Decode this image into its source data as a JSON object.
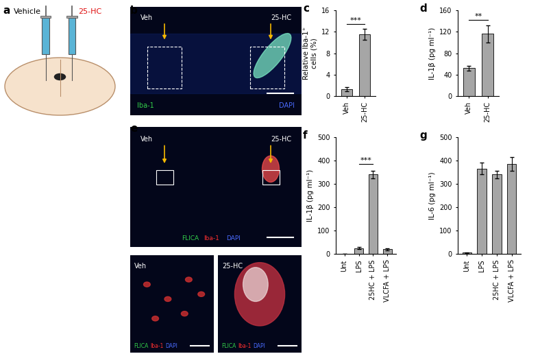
{
  "figure": [
    {
      "label": "a",
      "left": "Vehicle",
      "right": "25-HC",
      "right_color": "#e01010"
    },
    {
      "label": "b",
      "left": "Veh",
      "right": "25-HC",
      "stains": [
        {
          "text": "Iba-1",
          "color": "#33d14a"
        },
        {
          "text": "DAPI",
          "color": "#4a6bff"
        }
      ]
    },
    {
      "label": "e",
      "left": "Veh",
      "right": "25-HC",
      "stains": [
        {
          "text": "FLICA",
          "color": "#33d14a"
        },
        {
          "text": "Iba-1",
          "color": "#ff3030"
        },
        {
          "text": "DAPI",
          "color": "#4a6bff"
        }
      ],
      "insets": [
        "Veh",
        "25-HC"
      ]
    }
  ],
  "chart_data": [
    {
      "panel": "c",
      "type": "bar",
      "categories": [
        "Veh",
        "25-HC"
      ],
      "values": [
        1.3,
        11.5
      ],
      "errors": [
        0.4,
        1.0
      ],
      "color": "#a6a6a6",
      "y_label": "Relative Iba-1⁺\ncells (%)",
      "ylim": [
        0,
        16
      ],
      "yticks": [
        0,
        4,
        8,
        12,
        16
      ],
      "significance": [
        {
          "between": [
            "Veh",
            "25-HC"
          ],
          "label": "***"
        }
      ]
    },
    {
      "panel": "d",
      "type": "bar",
      "categories": [
        "Veh",
        "25-HC"
      ],
      "values": [
        52,
        116
      ],
      "errors": [
        4,
        16
      ],
      "color": "#a6a6a6",
      "y_label": "IL-1β (pg ml⁻¹)",
      "ylim": [
        0,
        160
      ],
      "yticks": [
        0,
        40,
        80,
        120,
        160
      ],
      "significance": [
        {
          "between": [
            "Veh",
            "25-HC"
          ],
          "label": "**"
        }
      ]
    },
    {
      "panel": "f",
      "type": "bar",
      "categories": [
        "Unt",
        "LPS",
        "25HC + LPS",
        "VLCFA + LPS"
      ],
      "values": [
        1,
        25,
        340,
        20
      ],
      "errors": [
        0,
        4,
        15,
        5
      ],
      "color": "#a6a6a6",
      "y_label": "IL-1β (pg ml⁻¹)",
      "ylim": [
        0,
        500
      ],
      "yticks": [
        0,
        100,
        200,
        300,
        400,
        500
      ],
      "significance": [
        {
          "between": [
            "LPS",
            "25HC + LPS"
          ],
          "label": "***"
        }
      ]
    },
    {
      "panel": "g",
      "type": "bar",
      "categories": [
        "Unt",
        "LPS",
        "25HC + LPS",
        "VLCFA + LPS"
      ],
      "values": [
        5,
        365,
        340,
        385
      ],
      "errors": [
        2,
        25,
        15,
        30
      ],
      "color": "#a6a6a6",
      "y_label": "IL-6 (pg ml⁻¹)",
      "ylim": [
        0,
        500
      ],
      "yticks": [
        0,
        100,
        200,
        300,
        400,
        500
      ]
    }
  ]
}
